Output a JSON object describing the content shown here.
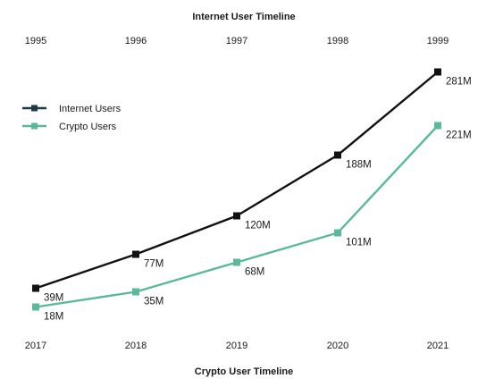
{
  "chart_data": {
    "type": "line",
    "title": "Internet User Timeline",
    "subtitle": "Crypto User Timeline",
    "top_axis": {
      "tick_labels": [
        "1995",
        "1996",
        "1997",
        "1998",
        "1999"
      ]
    },
    "bottom_axis": {
      "tick_labels": [
        "2017",
        "2018",
        "2019",
        "2020",
        "2021"
      ]
    },
    "ylim": [
      0,
      300
    ],
    "grid": false,
    "legend_position": "left",
    "series": [
      {
        "name": "Internet Users",
        "axis": "top",
        "color": "#111111",
        "values": [
          39,
          77,
          120,
          188,
          281
        ],
        "labels": [
          "39M",
          "77M",
          "120M",
          "188M",
          "281M"
        ]
      },
      {
        "name": "Crypto Users",
        "axis": "bottom",
        "color": "#5cb89a",
        "values": [
          18,
          35,
          68,
          101,
          221
        ],
        "labels": [
          "18M",
          "35M",
          "68M",
          "101M",
          "221M"
        ]
      }
    ]
  },
  "legend": {
    "items": [
      "Internet Users",
      "Crypto Users"
    ]
  }
}
